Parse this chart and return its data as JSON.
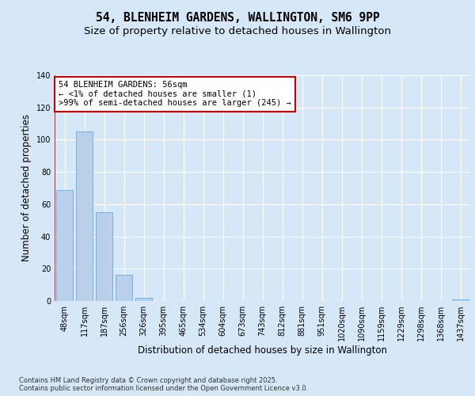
{
  "title": "54, BLENHEIM GARDENS, WALLINGTON, SM6 9PP",
  "subtitle": "Size of property relative to detached houses in Wallington",
  "xlabel": "Distribution of detached houses by size in Wallington",
  "ylabel": "Number of detached properties",
  "categories": [
    "48sqm",
    "117sqm",
    "187sqm",
    "256sqm",
    "326sqm",
    "395sqm",
    "465sqm",
    "534sqm",
    "604sqm",
    "673sqm",
    "743sqm",
    "812sqm",
    "881sqm",
    "951sqm",
    "1020sqm",
    "1090sqm",
    "1159sqm",
    "1229sqm",
    "1298sqm",
    "1368sqm",
    "1437sqm"
  ],
  "values": [
    69,
    105,
    55,
    16,
    2,
    0,
    0,
    0,
    0,
    0,
    0,
    0,
    0,
    0,
    0,
    0,
    0,
    0,
    0,
    0,
    1
  ],
  "bar_color": "#b8d0ea",
  "bar_edge_color": "#6fa8d8",
  "annotation_text": "54 BLENHEIM GARDENS: 56sqm\n← <1% of detached houses are smaller (1)\n>99% of semi-detached houses are larger (245) →",
  "annotation_box_facecolor": "#ffffff",
  "annotation_box_edgecolor": "#cc0000",
  "red_line_color": "#cc0000",
  "background_color": "#d6e8f7",
  "plot_bg_color": "#d6e8f7",
  "grid_color": "#ffffff",
  "ylim": [
    0,
    140
  ],
  "yticks": [
    0,
    20,
    40,
    60,
    80,
    100,
    120,
    140
  ],
  "footer": "Contains HM Land Registry data © Crown copyright and database right 2025.\nContains public sector information licensed under the Open Government Licence v3.0.",
  "title_fontsize": 10.5,
  "subtitle_fontsize": 9.5,
  "tick_fontsize": 7,
  "ylabel_fontsize": 8.5,
  "xlabel_fontsize": 8.5,
  "annotation_fontsize": 7.5,
  "footer_fontsize": 6
}
